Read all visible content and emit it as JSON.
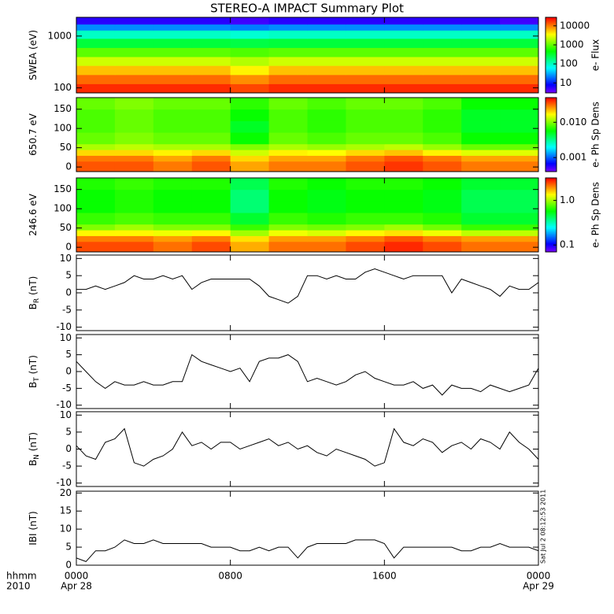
{
  "chart_data": [
    {
      "type": "heatmap",
      "title": "STEREO-A IMPACT Summary Plot",
      "ylabel": "SWEA (eV)",
      "colorbar_label": "e- Flux",
      "xlim": [
        0,
        24
      ],
      "xticks": [
        0,
        8,
        16,
        24
      ],
      "ylim": [
        80,
        2300
      ],
      "ylog": true,
      "yticks": [
        100,
        1000
      ],
      "clim": [
        3,
        28000
      ],
      "clog": true,
      "cticks": [
        10,
        100,
        1000,
        10000
      ],
      "x_edges": [
        0,
        2,
        4,
        6,
        8,
        10,
        12,
        14,
        16,
        18,
        20,
        22,
        24
      ],
      "y_edges": [
        80,
        120,
        180,
        270,
        400,
        600,
        900,
        1300,
        1700,
        2300
      ],
      "z": [
        [
          20000,
          20000,
          20000,
          20000,
          16000,
          20000,
          20000,
          20000,
          20000,
          20000,
          20000,
          20000
        ],
        [
          12000,
          12000,
          12000,
          12000,
          9000,
          12000,
          12000,
          12000,
          12000,
          12000,
          12000,
          12000
        ],
        [
          6000,
          6000,
          6000,
          6000,
          4000,
          6000,
          6000,
          6000,
          6000,
          6000,
          6000,
          6000
        ],
        [
          2500,
          2500,
          2500,
          2500,
          2000,
          2500,
          2500,
          2500,
          2500,
          2500,
          2500,
          2500
        ],
        [
          1000,
          1000,
          1000,
          1000,
          900,
          1000,
          1000,
          1000,
          1000,
          1000,
          1000,
          1000
        ],
        [
          300,
          300,
          300,
          300,
          280,
          300,
          300,
          300,
          300,
          300,
          300,
          300
        ],
        [
          100,
          100,
          100,
          100,
          90,
          100,
          100,
          100,
          100,
          100,
          100,
          100
        ],
        [
          25,
          25,
          25,
          25,
          22,
          25,
          25,
          25,
          25,
          25,
          25,
          25
        ],
        [
          6,
          6,
          6,
          6,
          5,
          6,
          6,
          6,
          6,
          6,
          6,
          5
        ]
      ]
    },
    {
      "type": "heatmap",
      "ylabel": "650.7 eV",
      "colorbar_label": "e- Ph Sp Dens",
      "xlim": [
        0,
        24
      ],
      "xticks": [
        0,
        8,
        16,
        24
      ],
      "ylim": [
        -12,
        180
      ],
      "yticks": [
        0,
        50,
        100,
        150
      ],
      "clim": [
        0.0004,
        0.05
      ],
      "clog": true,
      "cticks": [
        0.001,
        {
          "value": 0.01,
          "label": "0.010"
        }
      ],
      "x_edges": [
        0,
        2,
        4,
        6,
        8,
        10,
        12,
        14,
        16,
        18,
        20,
        22,
        24
      ],
      "y_edges": [
        -12,
        15,
        30,
        45,
        60,
        90,
        120,
        150,
        180
      ],
      "z": [
        [
          0.035,
          0.035,
          0.03,
          0.035,
          0.025,
          0.03,
          0.03,
          0.035,
          0.04,
          0.035,
          0.03,
          0.03
        ],
        [
          0.03,
          0.03,
          0.025,
          0.03,
          0.02,
          0.025,
          0.025,
          0.03,
          0.035,
          0.03,
          0.025,
          0.025
        ],
        [
          0.02,
          0.02,
          0.018,
          0.02,
          0.014,
          0.018,
          0.017,
          0.02,
          0.022,
          0.018,
          0.015,
          0.015
        ],
        [
          0.012,
          0.013,
          0.012,
          0.012,
          0.01,
          0.012,
          0.011,
          0.012,
          0.013,
          0.011,
          0.009,
          0.009
        ],
        [
          0.009,
          0.01,
          0.009,
          0.009,
          0.006,
          0.009,
          0.008,
          0.009,
          0.009,
          0.008,
          0.006,
          0.006
        ],
        [
          0.008,
          0.009,
          0.008,
          0.008,
          0.005,
          0.008,
          0.007,
          0.008,
          0.008,
          0.007,
          0.005,
          0.005
        ],
        [
          0.008,
          0.009,
          0.008,
          0.008,
          0.006,
          0.008,
          0.007,
          0.008,
          0.008,
          0.007,
          0.005,
          0.005
        ],
        [
          0.009,
          0.01,
          0.009,
          0.009,
          0.007,
          0.009,
          0.008,
          0.009,
          0.009,
          0.008,
          0.006,
          0.006
        ]
      ]
    },
    {
      "type": "heatmap",
      "ylabel": "246.6 eV",
      "colorbar_label": "e- Ph Sp Dens",
      "xlim": [
        0,
        24
      ],
      "xticks": [
        0,
        8,
        16,
        24
      ],
      "ylim": [
        -12,
        180
      ],
      "yticks": [
        0,
        50,
        100,
        150
      ],
      "clim": [
        0.07,
        3.2
      ],
      "clog": true,
      "cticks": [
        0.1,
        {
          "value": 1,
          "label": "1.0"
        }
      ],
      "x_edges": [
        0,
        2,
        4,
        6,
        8,
        10,
        12,
        14,
        16,
        18,
        20,
        22,
        24
      ],
      "y_edges": [
        -12,
        15,
        30,
        45,
        60,
        90,
        120,
        150,
        180
      ],
      "z": [
        [
          2.5,
          2.5,
          2.2,
          2.5,
          1.8,
          2.2,
          2.2,
          2.5,
          2.8,
          2.5,
          2.2,
          2.2
        ],
        [
          2.1,
          2.1,
          1.9,
          2.1,
          1.5,
          1.9,
          1.9,
          2.1,
          2.4,
          2.1,
          1.9,
          1.9
        ],
        [
          1.4,
          1.4,
          1.3,
          1.4,
          1.0,
          1.3,
          1.2,
          1.4,
          1.5,
          1.3,
          1.1,
          1.1
        ],
        [
          0.9,
          1.0,
          0.9,
          0.9,
          0.7,
          0.9,
          0.85,
          0.9,
          1.0,
          0.85,
          0.7,
          0.7
        ],
        [
          0.7,
          0.75,
          0.7,
          0.7,
          0.5,
          0.7,
          0.65,
          0.7,
          0.7,
          0.65,
          0.5,
          0.5
        ],
        [
          0.6,
          0.65,
          0.6,
          0.6,
          0.4,
          0.6,
          0.55,
          0.6,
          0.6,
          0.55,
          0.45,
          0.45
        ],
        [
          0.6,
          0.65,
          0.6,
          0.6,
          0.4,
          0.6,
          0.55,
          0.6,
          0.6,
          0.55,
          0.45,
          0.45
        ],
        [
          0.65,
          0.7,
          0.65,
          0.65,
          0.45,
          0.65,
          0.6,
          0.65,
          0.65,
          0.6,
          0.5,
          0.5
        ]
      ]
    },
    {
      "type": "line",
      "ylabel": "B",
      "ylabel_sub": "R",
      "ylabel_unit": " (nT)",
      "color": "#000000",
      "xlim": [
        0,
        24
      ],
      "xticks": [
        0,
        8,
        16,
        24
      ],
      "ylim": [
        -11,
        11
      ],
      "yticks": [
        -10,
        -5,
        0,
        5,
        10
      ],
      "x": [
        0,
        0.5,
        1,
        1.5,
        2,
        2.5,
        3,
        3.5,
        4,
        4.5,
        5,
        5.5,
        6,
        6.5,
        7,
        7.5,
        8,
        8.5,
        9,
        9.5,
        10,
        10.5,
        11,
        11.5,
        12,
        12.5,
        13,
        13.5,
        14,
        14.5,
        15,
        15.5,
        16,
        16.5,
        17,
        17.5,
        18,
        18.5,
        19,
        19.5,
        20,
        20.5,
        21,
        21.5,
        22,
        22.5,
        23,
        23.5,
        24
      ],
      "values": [
        1,
        1,
        2,
        1,
        2,
        3,
        5,
        4,
        4,
        5,
        4,
        5,
        1,
        3,
        4,
        4,
        4,
        4,
        4,
        2,
        -1,
        -2,
        -3,
        -1,
        5,
        5,
        4,
        5,
        4,
        4,
        6,
        7,
        6,
        5,
        4,
        5,
        5,
        5,
        5,
        0,
        4,
        3,
        2,
        1,
        -1,
        2,
        1,
        1,
        3
      ]
    },
    {
      "type": "line",
      "ylabel": "B",
      "ylabel_sub": "T",
      "ylabel_unit": " (nT)",
      "color": "#000000",
      "xlim": [
        0,
        24
      ],
      "xticks": [
        0,
        8,
        16,
        24
      ],
      "ylim": [
        -11,
        11
      ],
      "yticks": [
        -10,
        -5,
        0,
        5,
        10
      ],
      "x": [
        0,
        0.5,
        1,
        1.5,
        2,
        2.5,
        3,
        3.5,
        4,
        4.5,
        5,
        5.5,
        6,
        6.5,
        7,
        7.5,
        8,
        8.5,
        9,
        9.5,
        10,
        10.5,
        11,
        11.5,
        12,
        12.5,
        13,
        13.5,
        14,
        14.5,
        15,
        15.5,
        16,
        16.5,
        17,
        17.5,
        18,
        18.5,
        19,
        19.5,
        20,
        20.5,
        21,
        21.5,
        22,
        22.5,
        23,
        23.5,
        24
      ],
      "values": [
        3,
        0,
        -3,
        -5,
        -3,
        -4,
        -4,
        -3,
        -4,
        -4,
        -3,
        -3,
        5,
        3,
        2,
        1,
        0,
        1,
        -3,
        3,
        4,
        4,
        5,
        3,
        -3,
        -2,
        -3,
        -4,
        -3,
        -1,
        0,
        -2,
        -3,
        -4,
        -4,
        -3,
        -5,
        -4,
        -7,
        -4,
        -5,
        -5,
        -6,
        -4,
        -5,
        -6,
        -5,
        -4,
        1
      ]
    },
    {
      "type": "line",
      "ylabel": "B",
      "ylabel_sub": "N",
      "ylabel_unit": " (nT)",
      "color": "#000000",
      "xlim": [
        0,
        24
      ],
      "xticks": [
        0,
        8,
        16,
        24
      ],
      "ylim": [
        -11,
        11
      ],
      "yticks": [
        -10,
        -5,
        0,
        5,
        10
      ],
      "x": [
        0,
        0.5,
        1,
        1.5,
        2,
        2.5,
        3,
        3.5,
        4,
        4.5,
        5,
        5.5,
        6,
        6.5,
        7,
        7.5,
        8,
        8.5,
        9,
        9.5,
        10,
        10.5,
        11,
        11.5,
        12,
        12.5,
        13,
        13.5,
        14,
        14.5,
        15,
        15.5,
        16,
        16.5,
        17,
        17.5,
        18,
        18.5,
        19,
        19.5,
        20,
        20.5,
        21,
        21.5,
        22,
        22.5,
        23,
        23.5,
        24
      ],
      "values": [
        1,
        -2,
        -3,
        2,
        3,
        6,
        -4,
        -5,
        -3,
        -2,
        0,
        5,
        1,
        2,
        0,
        2,
        2,
        0,
        1,
        2,
        3,
        1,
        2,
        0,
        1,
        -1,
        -2,
        0,
        -1,
        -2,
        -3,
        -5,
        -4,
        6,
        2,
        1,
        3,
        2,
        -1,
        1,
        2,
        0,
        3,
        2,
        0,
        5,
        2,
        0,
        -3
      ]
    },
    {
      "type": "line",
      "ylabel": "IBI (nT)",
      "color": "#000000",
      "xlim": [
        0,
        24
      ],
      "ylim": [
        0,
        20.5
      ],
      "yticks": [
        0,
        5,
        10,
        15,
        20
      ],
      "xticks": [
        {
          "value": 0,
          "label": "0000"
        },
        {
          "value": 8,
          "label": "0800"
        },
        {
          "value": 16,
          "label": "1600"
        },
        {
          "value": 24,
          "label": "0000"
        }
      ],
      "date_labels": [
        {
          "value": 0,
          "label": "Apr 28"
        },
        {
          "value": 24,
          "label": "Apr 29"
        }
      ],
      "xaxis_label": [
        "hhmm",
        "2010"
      ],
      "timestamp": "Sat Jul  2 08:12:53 2011",
      "x": [
        0,
        0.5,
        1,
        1.5,
        2,
        2.5,
        3,
        3.5,
        4,
        4.5,
        5,
        5.5,
        6,
        6.5,
        7,
        7.5,
        8,
        8.5,
        9,
        9.5,
        10,
        10.5,
        11,
        11.5,
        12,
        12.5,
        13,
        13.5,
        14,
        14.5,
        15,
        15.5,
        16,
        16.5,
        17,
        17.5,
        18,
        18.5,
        19,
        19.5,
        20,
        20.5,
        21,
        21.5,
        22,
        22.5,
        23,
        23.5,
        24
      ],
      "values": [
        2,
        1,
        4,
        4,
        5,
        7,
        6,
        6,
        7,
        6,
        6,
        6,
        6,
        6,
        5,
        5,
        5,
        4,
        4,
        5,
        4,
        5,
        5,
        2,
        5,
        6,
        6,
        6,
        6,
        7,
        7,
        7,
        6,
        2,
        5,
        5,
        5,
        5,
        5,
        5,
        4,
        4,
        5,
        5,
        6,
        5,
        5,
        5,
        4
      ]
    }
  ]
}
